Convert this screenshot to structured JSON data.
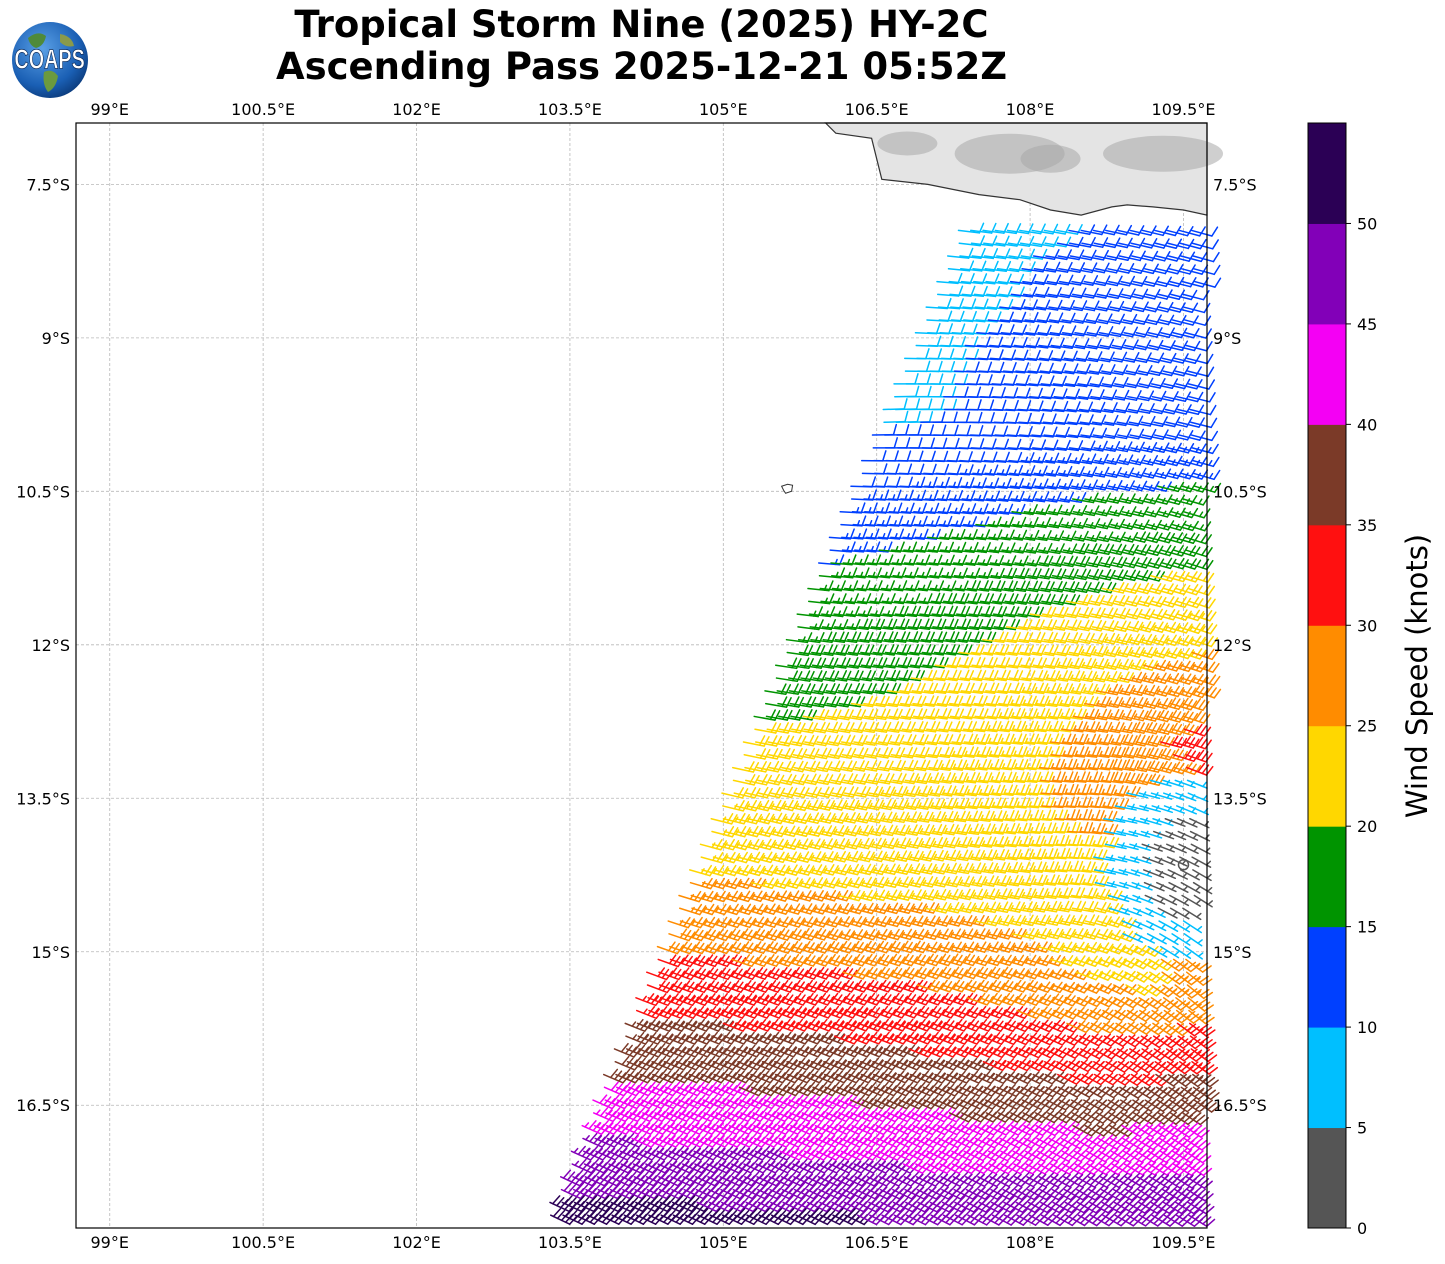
{
  "title_line1": "Tropical Storm Nine (2025) HY-2C",
  "title_line2": "Ascending Pass 2025-12-21 05:52Z",
  "logo_text": "COAPS",
  "chart_data": {
    "type": "wind_barbs",
    "x_ticks": [
      "99°E",
      "100.5°E",
      "102°E",
      "103.5°E",
      "105°E",
      "106.5°E",
      "108°E",
      "109.5°E"
    ],
    "x_tick_values": [
      99,
      100.5,
      102,
      103.5,
      105,
      106.5,
      108,
      109.5
    ],
    "y_ticks": [
      "7.5°S",
      "9°S",
      "10.5°S",
      "12°S",
      "13.5°S",
      "15°S",
      "16.5°S"
    ],
    "y_tick_values": [
      -7.5,
      -9,
      -10.5,
      -12,
      -13.5,
      -15,
      -16.5
    ],
    "xlim": [
      98.67,
      109.73
    ],
    "ylim": [
      -17.7,
      -6.9
    ],
    "grid": true,
    "storm_center": {
      "lon": 109.5,
      "lat": -14.15
    },
    "swath": {
      "west_edge_top": 107.3,
      "west_edge_bottom": 103.2,
      "east_edge": 109.73,
      "north_edge": -7.95
    },
    "colorbar": {
      "label": "Wind Speed (knots)",
      "ticks": [
        "0",
        "5",
        "10",
        "15",
        "20",
        "25",
        "30",
        "35",
        "40",
        "45",
        "50"
      ],
      "bins": [
        {
          "min": 0,
          "max": 5,
          "color": "#555555"
        },
        {
          "min": 5,
          "max": 10,
          "color": "#00bfff"
        },
        {
          "min": 10,
          "max": 15,
          "color": "#0040ff"
        },
        {
          "min": 15,
          "max": 20,
          "color": "#009400"
        },
        {
          "min": 20,
          "max": 25,
          "color": "#ffd700"
        },
        {
          "min": 25,
          "max": 30,
          "color": "#ff8c00"
        },
        {
          "min": 30,
          "max": 35,
          "color": "#ff1010"
        },
        {
          "min": 35,
          "max": 40,
          "color": "#7b3a28"
        },
        {
          "min": 40,
          "max": 45,
          "color": "#f400f4"
        },
        {
          "min": 45,
          "max": 50,
          "color": "#8200b8"
        },
        {
          "min": 50,
          "max": 55,
          "color": "#2b0055"
        }
      ]
    }
  }
}
